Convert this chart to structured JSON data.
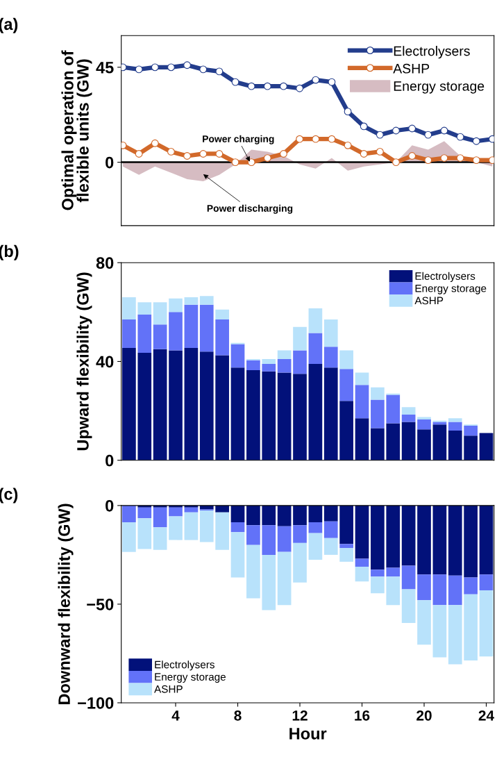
{
  "chart_data": [
    {
      "type": "line",
      "title": "(a)",
      "ylabel": "Optimal operation of\nflexible units (GW)",
      "categories": [
        null,
        null,
        null,
        null,
        null,
        null,
        null,
        null,
        null,
        null,
        null,
        null,
        null,
        null,
        null,
        null,
        null,
        null,
        null,
        null,
        null,
        null,
        null,
        null
      ],
      "series": [
        {
          "name": "Electrolysers",
          "color": "#233d8c",
          "marker": "circle",
          "values": [
            45,
            44,
            45,
            45,
            46,
            44,
            43,
            38,
            36,
            36,
            36,
            35,
            39,
            38,
            24,
            17,
            13,
            15,
            16,
            13,
            15,
            12,
            10,
            11
          ]
        },
        {
          "name": "ASHP",
          "color": "#d2692a",
          "marker": "circle",
          "values": [
            8,
            4,
            9,
            5,
            3,
            4,
            4,
            0,
            0,
            2,
            4,
            11,
            11,
            11,
            8,
            4,
            5,
            0,
            3,
            1,
            2,
            2,
            1,
            1
          ]
        },
        {
          "name": "Energy storage",
          "type": "area",
          "color": "#d6bcc2",
          "values": [
            -2,
            -6,
            -2,
            -5,
            -8,
            -9,
            -6,
            -1,
            6,
            5,
            3,
            -1,
            -3,
            2,
            -4,
            -2,
            -1,
            0,
            8,
            6,
            10,
            3,
            0,
            -2
          ]
        }
      ],
      "ylim": [
        -30,
        60
      ],
      "yticks": [
        0,
        45
      ],
      "line_style": "solid",
      "ref_lines": [
        {
          "axis": "y",
          "value": 0,
          "color": "#000000"
        }
      ],
      "annotations": [
        {
          "text": "Power charging",
          "y": 0.3
        },
        "Power discharging"
      ],
      "legend": "top right",
      "tick_labels": "y",
      "grid": false
    },
    {
      "type": "bar",
      "title": "(b)",
      "ylabel": "Upward flexibility (GW)",
      "stacked": true,
      "categories": [
        null,
        null,
        null,
        null,
        null,
        null,
        null,
        null,
        null,
        null,
        null,
        null,
        null,
        null,
        null,
        null,
        null,
        null,
        null,
        null,
        null,
        null,
        null,
        null
      ],
      "series": [
        {
          "name": "Electrolysers",
          "color": "#02117a",
          "values": [
            45.5,
            43.5,
            45,
            44.5,
            45.5,
            44,
            42.5,
            37.5,
            36.5,
            36,
            35.5,
            35,
            39,
            37.5,
            24,
            17,
            13,
            15,
            15.5,
            12.5,
            14.5,
            12,
            10,
            11
          ]
        },
        {
          "name": "Energy storage",
          "color": "#6272f8",
          "values": [
            11.5,
            15.5,
            10,
            15.5,
            17.5,
            19,
            14.5,
            9.5,
            4,
            3,
            5.5,
            9.5,
            12.5,
            8.5,
            13,
            13.5,
            11.5,
            11.5,
            3,
            4,
            1,
            3.5,
            4,
            0
          ]
        },
        {
          "name": "ASHP",
          "color": "#b8e2fb",
          "values": [
            9,
            5,
            9,
            5.5,
            3,
            3.5,
            4,
            0.5,
            0.5,
            2,
            3.5,
            9.5,
            10,
            11,
            7.5,
            5,
            5,
            0.5,
            3,
            1,
            0.5,
            1.5,
            0.5,
            0
          ]
        }
      ],
      "ylim": [
        0,
        80
      ],
      "yticks": [
        0,
        40,
        80
      ],
      "legend": "top right",
      "tick_labels": "y",
      "grid": false
    },
    {
      "type": "bar",
      "title": "(c)",
      "ylabel": "Downward flexibility (GW)",
      "xlabel": "Hour",
      "stacked": true,
      "x": [
        1,
        2,
        3,
        4,
        5,
        6,
        7,
        8,
        9,
        10,
        11,
        12,
        13,
        14,
        15,
        16,
        17,
        18,
        19,
        20,
        21,
        22,
        23,
        24
      ],
      "series": [
        {
          "name": "Electrolysers",
          "color": "#02117a",
          "values": [
            0,
            -1,
            -1,
            -1,
            -1,
            -2,
            -3.5,
            -8.5,
            -10,
            -10,
            -10.5,
            -10,
            -8.5,
            -8,
            -19.5,
            -27,
            -32.5,
            -31.5,
            -30.5,
            -35,
            -35,
            -35.5,
            -36.5,
            -35
          ]
        },
        {
          "name": "Energy storage",
          "color": "#6272f8",
          "values": [
            -8.5,
            -5.5,
            -10,
            -4.5,
            -2.5,
            -0.5,
            0,
            -5,
            -10,
            -15,
            -13,
            -9,
            -5.5,
            -8.5,
            -2,
            -4,
            -3.5,
            -4.5,
            -12,
            -13,
            -15.5,
            -15,
            -8.5,
            -8
          ]
        },
        {
          "name": "ASHP",
          "color": "#b8e2fb",
          "values": [
            -15,
            -15.5,
            -11.5,
            -12,
            -14,
            -16,
            -19,
            -23,
            -27,
            -28,
            -27,
            -20,
            -13.5,
            -8.5,
            -7,
            -7.5,
            -8.5,
            -14.5,
            -17,
            -22.5,
            -26.5,
            -30,
            -33.5,
            -33.5
          ]
        }
      ],
      "xlim": [
        0.5,
        24.5
      ],
      "xticks": [
        4,
        8,
        12,
        16,
        20,
        24
      ],
      "ylim": [
        -100,
        0
      ],
      "yticks": [
        -100,
        -50,
        0
      ],
      "legend": "bottom left",
      "grid": false
    }
  ]
}
